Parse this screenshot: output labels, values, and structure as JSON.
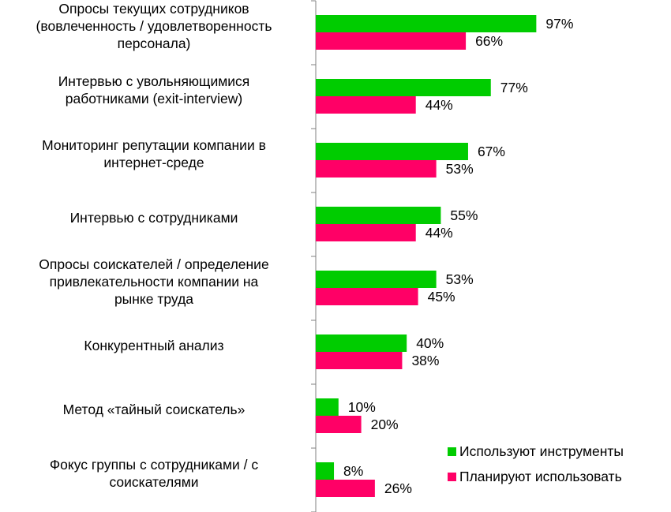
{
  "chart_data": {
    "type": "bar",
    "orientation": "horizontal",
    "categories": [
      "Опросы текущих сотрудников\n(вовлеченность / удовлетворенность\nперсонала)",
      "Интервью с увольняющимися\nработниками (exit-interview)",
      "Мониторинг репутации компании в\nинтернет-среде",
      "Интервью с сотрудниками",
      "Опросы соискателей / определение\nпривлекательности компании на\nрынке труда",
      "Конкурентный анализ",
      "Метод «тайный соискатель»",
      "Фокус группы с сотрудниками / с\nсоискателями"
    ],
    "series": [
      {
        "name": "Используют инструменты",
        "color": "#00CC00",
        "values": [
          97,
          77,
          67,
          55,
          53,
          40,
          10,
          8
        ]
      },
      {
        "name": "Планируют использовать",
        "color": "#FF0066",
        "values": [
          66,
          44,
          53,
          44,
          45,
          38,
          20,
          26
        ]
      }
    ],
    "value_suffix": "%",
    "xlim": [
      0,
      100
    ],
    "grid": false,
    "legend_position": "bottom-right"
  }
}
